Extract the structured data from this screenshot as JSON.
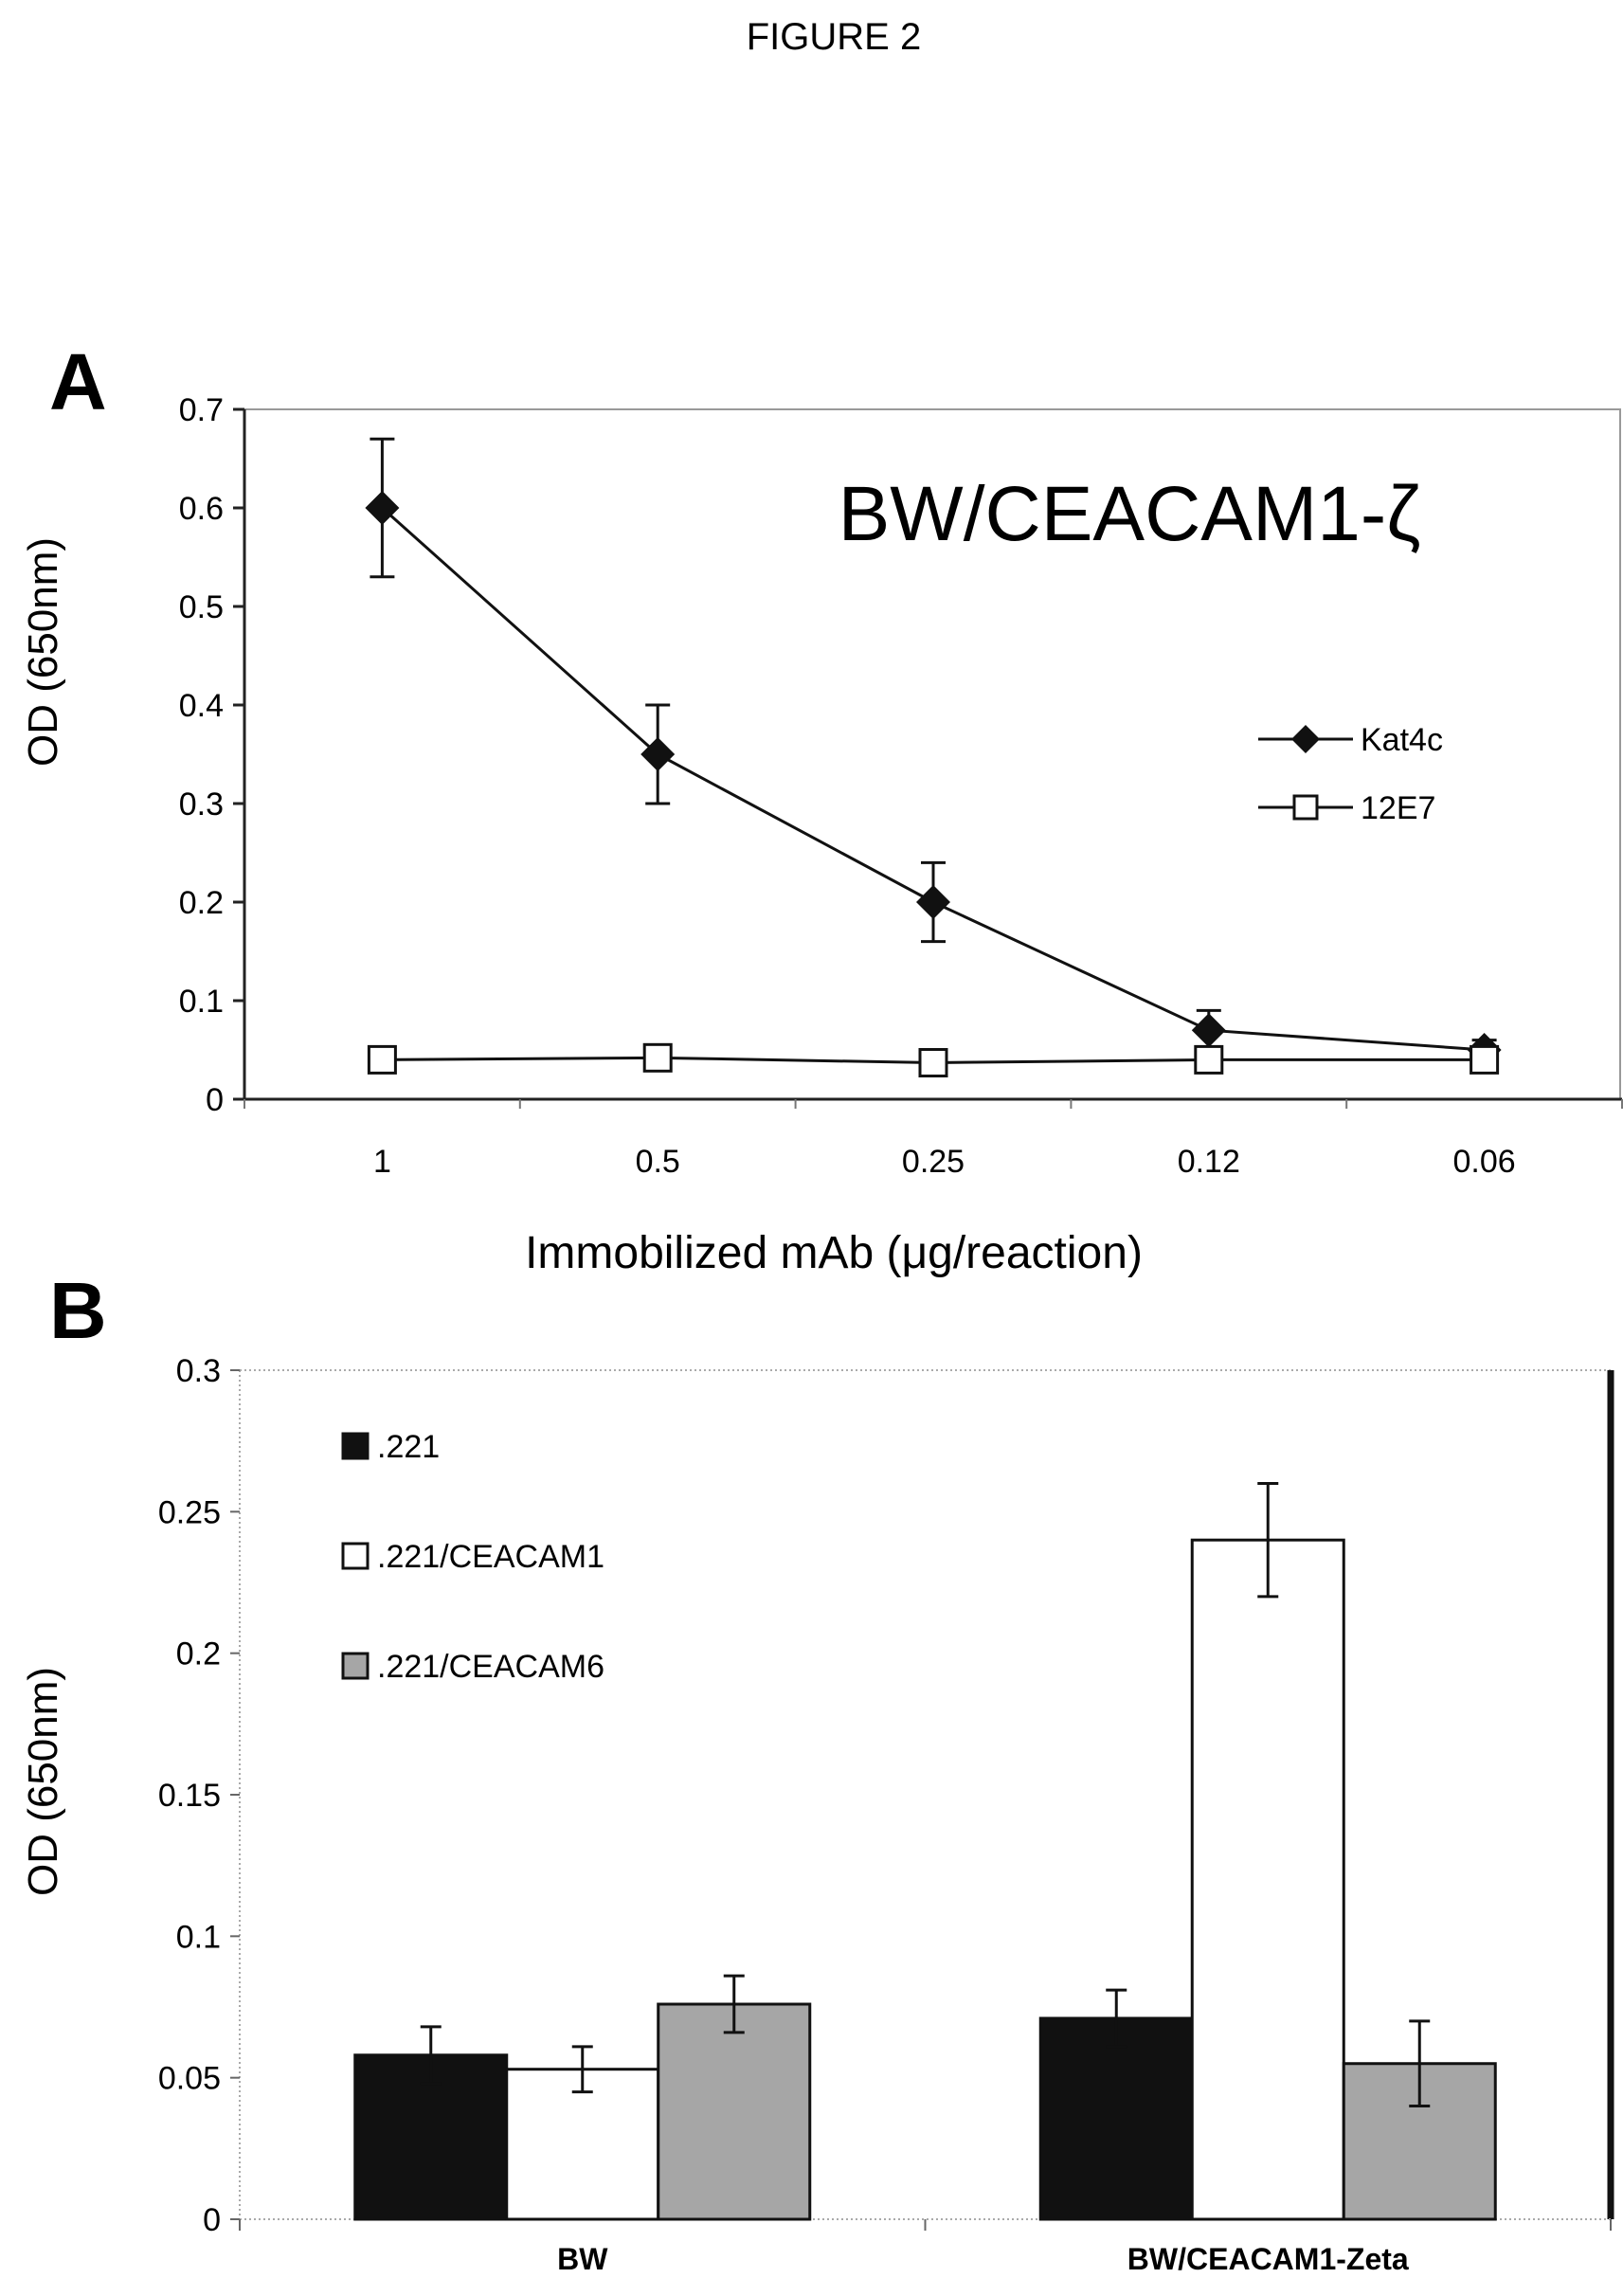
{
  "figure_title": "FIGURE 2",
  "chart_data": [
    {
      "panel": "A",
      "type": "line",
      "title": "BW/CEACAM1-ζ",
      "xlabel": "Immobilized mAb (μg/reaction)",
      "ylabel": "OD (650nm)",
      "categories": [
        "1",
        "0.5",
        "0.25",
        "0.12",
        "0.06"
      ],
      "ylim": [
        0,
        0.7
      ],
      "yticks": [
        "0",
        "0.1",
        "0.2",
        "0.3",
        "0.4",
        "0.5",
        "0.6",
        "0.7"
      ],
      "grid": false,
      "legend_position": "right",
      "series": [
        {
          "name": "Kat4c",
          "marker": "filled-diamond",
          "values": [
            0.6,
            0.35,
            0.2,
            0.07,
            0.05
          ],
          "error": [
            0.07,
            0.05,
            0.04,
            0.02,
            0.01
          ]
        },
        {
          "name": "12E7",
          "marker": "open-square",
          "values": [
            0.04,
            0.042,
            0.037,
            0.04,
            0.04
          ],
          "error": [
            0,
            0,
            0,
            0,
            0
          ]
        }
      ]
    },
    {
      "panel": "B",
      "type": "bar",
      "ylabel": "OD (650nm)",
      "categories": [
        "BW",
        "BW/CEACAM1-Zeta"
      ],
      "ylim": [
        0,
        0.3
      ],
      "yticks": [
        "0",
        "0.05",
        "0.1",
        "0.15",
        "0.2",
        "0.25",
        "0.3"
      ],
      "grid": false,
      "legend_position": "top-left",
      "series": [
        {
          "name": ".221",
          "color": "#111111",
          "values": [
            0.058,
            0.071
          ],
          "error": [
            0.01,
            0.01
          ]
        },
        {
          "name": ".221/CEACAM1",
          "color": "#ffffff",
          "values": [
            0.053,
            0.24
          ],
          "error": [
            0.008,
            0.02
          ]
        },
        {
          "name": ".221/CEACAM6",
          "color": "#a6a6a6",
          "values": [
            0.076,
            0.055
          ],
          "error": [
            0.01,
            0.015
          ]
        }
      ]
    }
  ]
}
